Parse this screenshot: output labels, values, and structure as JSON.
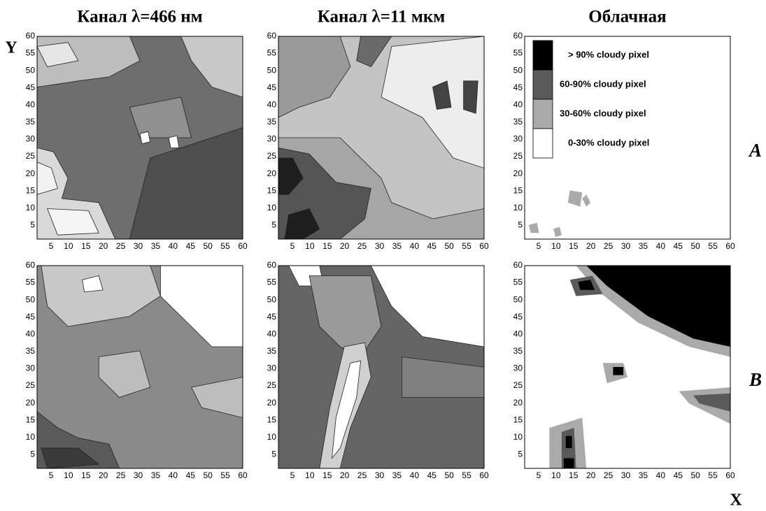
{
  "chart_data": [
    {
      "type": "contour",
      "title": "Канал λ=466 нм",
      "y_label": "Y",
      "xlim": [
        1,
        60
      ],
      "ylim": [
        1,
        60
      ],
      "xticks": [
        5,
        10,
        15,
        20,
        25,
        30,
        35,
        40,
        45,
        50,
        55,
        60
      ],
      "yticks": [
        5,
        10,
        15,
        20,
        25,
        30,
        35,
        40,
        45,
        50,
        55,
        60
      ]
    },
    {
      "type": "contour",
      "title": "Канал λ=11 мкм",
      "xlim": [
        1,
        60
      ],
      "ylim": [
        1,
        60
      ],
      "xticks": [
        5,
        10,
        15,
        20,
        25,
        30,
        35,
        40,
        45,
        50,
        55,
        60
      ],
      "yticks": [
        5,
        10,
        15,
        20,
        25,
        30,
        35,
        40,
        45,
        50,
        55,
        60
      ]
    },
    {
      "type": "contour",
      "title": "Облачная",
      "annotation": "A",
      "xlim": [
        1,
        60
      ],
      "ylim": [
        1,
        60
      ],
      "xticks": [
        5,
        10,
        15,
        20,
        25,
        30,
        35,
        40,
        45,
        50,
        55,
        60
      ],
      "yticks": [
        5,
        10,
        15,
        20,
        25,
        30,
        35,
        40,
        45,
        50,
        55,
        60
      ],
      "legend": [
        {
          "name": "> 90% cloudy pixel",
          "color": "#000000"
        },
        {
          "name": "60-90% cloudy pixel",
          "color": "#5a5a5a"
        },
        {
          "name": "30-60% cloudy pixel",
          "color": "#aaaaaa"
        },
        {
          "name": "0-30% cloudy pixel",
          "color": "#ffffff"
        }
      ]
    },
    {
      "type": "contour",
      "xlim": [
        1,
        60
      ],
      "ylim": [
        1,
        60
      ],
      "xticks": [
        5,
        10,
        15,
        20,
        25,
        30,
        35,
        40,
        45,
        50,
        55,
        60
      ],
      "yticks": [
        5,
        10,
        15,
        20,
        25,
        30,
        35,
        40,
        45,
        50,
        55,
        60
      ]
    },
    {
      "type": "contour",
      "xlim": [
        1,
        60
      ],
      "ylim": [
        1,
        60
      ],
      "xticks": [
        5,
        10,
        15,
        20,
        25,
        30,
        35,
        40,
        45,
        50,
        55,
        60
      ],
      "yticks": [
        5,
        10,
        15,
        20,
        25,
        30,
        35,
        40,
        45,
        50,
        55,
        60
      ]
    },
    {
      "type": "contour",
      "annotation": "B",
      "x_label": "X",
      "xlim": [
        1,
        60
      ],
      "ylim": [
        1,
        60
      ],
      "xticks": [
        5,
        10,
        15,
        20,
        25,
        30,
        35,
        40,
        45,
        50,
        55,
        60
      ],
      "yticks": [
        5,
        10,
        15,
        20,
        25,
        30,
        35,
        40,
        45,
        50,
        55,
        60
      ]
    }
  ]
}
